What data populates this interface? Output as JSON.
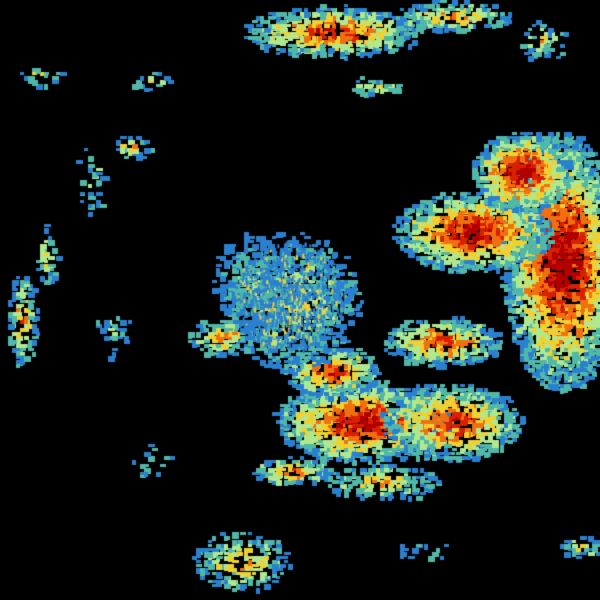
{
  "image": {
    "background": "#000000",
    "reflectivity_palette": [
      "#b00000",
      "#d82000",
      "#f07010",
      "#f0d030",
      "#b0e890",
      "#50b8a8",
      "#2a80d0"
    ]
  }
}
